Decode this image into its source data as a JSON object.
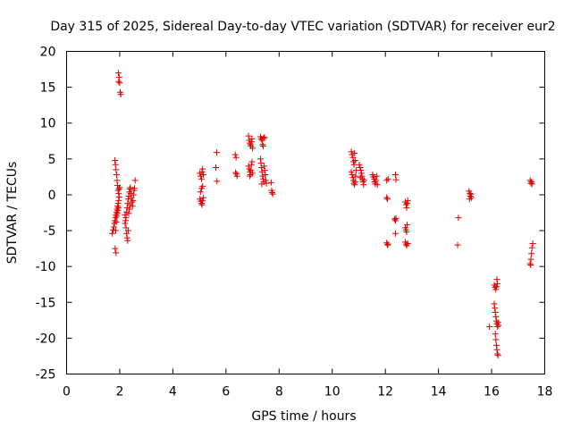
{
  "chart_data": {
    "type": "scatter",
    "title": "Day 315 of 2025, Sidereal Day-to-day VTEC variation (SDTVAR) for receiver eur2",
    "xlabel": "GPS time / hours",
    "ylabel": "SDTVAR / TECUs",
    "xlim": [
      0,
      18
    ],
    "ylim": [
      -25,
      20
    ],
    "x_ticks": [
      "0",
      "2",
      "4",
      "6",
      "8",
      "10",
      "12",
      "14",
      "16",
      "18"
    ],
    "y_ticks": [
      "-25",
      "-20",
      "-15",
      "-10",
      "-5",
      "0",
      "5",
      "10",
      "15",
      "20"
    ],
    "grid": false,
    "marker": "plus",
    "color": "#e00000",
    "series": [
      {
        "name": "SDTVAR",
        "points": [
          [
            1.72,
            -5.4
          ],
          [
            1.75,
            -4.9
          ],
          [
            1.78,
            -4.5
          ],
          [
            1.8,
            -4.0
          ],
          [
            1.82,
            -3.6
          ],
          [
            1.84,
            -3.2
          ],
          [
            1.86,
            -2.8
          ],
          [
            1.88,
            -2.4
          ],
          [
            1.9,
            -2.0
          ],
          [
            1.92,
            -1.6
          ],
          [
            1.94,
            -1.2
          ],
          [
            1.96,
            -0.8
          ],
          [
            1.85,
            -5.0
          ],
          [
            1.87,
            -3.8
          ],
          [
            1.89,
            -3.0
          ],
          [
            1.91,
            -2.6
          ],
          [
            1.93,
            -2.2
          ],
          [
            1.95,
            -1.8
          ],
          [
            1.82,
            4.8
          ],
          [
            1.84,
            4.2
          ],
          [
            1.86,
            3.5
          ],
          [
            1.88,
            2.8
          ],
          [
            1.9,
            2.0
          ],
          [
            1.92,
            1.3
          ],
          [
            1.94,
            0.6
          ],
          [
            1.96,
            0.2
          ],
          [
            1.98,
            -0.3
          ],
          [
            2.0,
            1.0
          ],
          [
            1.97,
            0.8
          ],
          [
            1.83,
            -7.5
          ],
          [
            1.86,
            -8.1
          ],
          [
            1.95,
            17.0
          ],
          [
            1.98,
            16.4
          ],
          [
            1.96,
            15.8
          ],
          [
            2.0,
            15.6
          ],
          [
            2.02,
            14.3
          ],
          [
            2.04,
            14.0
          ],
          [
            2.2,
            -2.8
          ],
          [
            2.24,
            -3.2
          ],
          [
            2.26,
            -2.4
          ],
          [
            2.28,
            -1.8
          ],
          [
            2.3,
            -1.2
          ],
          [
            2.32,
            -0.6
          ],
          [
            2.34,
            -0.2
          ],
          [
            2.36,
            0.4
          ],
          [
            2.38,
            0.8
          ],
          [
            2.4,
            1.0
          ],
          [
            2.42,
            0.2
          ],
          [
            2.44,
            -0.4
          ],
          [
            2.46,
            -1.0
          ],
          [
            2.48,
            -1.6
          ],
          [
            2.5,
            -0.8
          ],
          [
            2.52,
            0.0
          ],
          [
            2.54,
            0.6
          ],
          [
            2.56,
            0.9
          ],
          [
            2.58,
            2.0
          ],
          [
            2.2,
            -4.0
          ],
          [
            2.24,
            -4.6
          ],
          [
            2.26,
            -5.4
          ],
          [
            2.28,
            -6.0
          ],
          [
            2.3,
            -6.4
          ],
          [
            2.32,
            -5.0
          ],
          [
            2.22,
            -3.6
          ],
          [
            2.34,
            -2.6
          ],
          [
            2.36,
            -2.0
          ],
          [
            2.4,
            -1.4
          ],
          [
            5.02,
            3.0
          ],
          [
            5.05,
            2.6
          ],
          [
            5.08,
            2.2
          ],
          [
            5.1,
            3.2
          ],
          [
            5.12,
            3.6
          ],
          [
            5.15,
            2.8
          ],
          [
            5.02,
            -0.6
          ],
          [
            5.05,
            -0.9
          ],
          [
            5.08,
            -1.2
          ],
          [
            5.1,
            -1.4
          ],
          [
            5.12,
            -0.8
          ],
          [
            5.15,
            -0.4
          ],
          [
            5.04,
            0.4
          ],
          [
            5.08,
            0.9
          ],
          [
            5.12,
            1.2
          ],
          [
            5.65,
            5.9
          ],
          [
            5.62,
            3.8
          ],
          [
            5.66,
            1.9
          ],
          [
            6.35,
            5.6
          ],
          [
            6.38,
            5.2
          ],
          [
            6.36,
            3.1
          ],
          [
            6.4,
            2.9
          ],
          [
            6.42,
            2.6
          ],
          [
            6.85,
            8.2
          ],
          [
            6.88,
            7.6
          ],
          [
            6.9,
            7.2
          ],
          [
            6.92,
            7.0
          ],
          [
            6.94,
            6.8
          ],
          [
            6.96,
            7.4
          ],
          [
            6.98,
            7.8
          ],
          [
            7.0,
            6.5
          ],
          [
            6.85,
            4.0
          ],
          [
            6.88,
            3.6
          ],
          [
            6.9,
            3.2
          ],
          [
            6.92,
            2.8
          ],
          [
            6.94,
            3.4
          ],
          [
            6.96,
            4.2
          ],
          [
            6.98,
            4.6
          ],
          [
            7.0,
            3.0
          ],
          [
            6.9,
            2.6
          ],
          [
            7.3,
            8.1
          ],
          [
            7.33,
            7.8
          ],
          [
            7.36,
            7.6
          ],
          [
            7.38,
            7.0
          ],
          [
            7.4,
            6.8
          ],
          [
            7.42,
            7.9
          ],
          [
            7.45,
            8.0
          ],
          [
            7.3,
            5.0
          ],
          [
            7.32,
            4.4
          ],
          [
            7.34,
            3.8
          ],
          [
            7.36,
            3.2
          ],
          [
            7.38,
            2.6
          ],
          [
            7.4,
            2.2
          ],
          [
            7.42,
            1.8
          ],
          [
            7.44,
            4.0
          ],
          [
            7.46,
            3.4
          ],
          [
            7.48,
            2.8
          ],
          [
            7.5,
            2.0
          ],
          [
            7.52,
            1.6
          ],
          [
            7.35,
            1.5
          ],
          [
            7.7,
            1.7
          ],
          [
            7.72,
            0.6
          ],
          [
            7.74,
            0.3
          ],
          [
            7.76,
            0.1
          ],
          [
            10.72,
            6.0
          ],
          [
            10.75,
            5.6
          ],
          [
            10.78,
            5.2
          ],
          [
            10.8,
            4.6
          ],
          [
            10.82,
            4.2
          ],
          [
            10.84,
            5.8
          ],
          [
            10.86,
            4.8
          ],
          [
            10.72,
            3.2
          ],
          [
            10.75,
            2.8
          ],
          [
            10.78,
            2.4
          ],
          [
            10.8,
            2.0
          ],
          [
            10.82,
            1.6
          ],
          [
            10.84,
            1.4
          ],
          [
            10.86,
            1.8
          ],
          [
            10.88,
            2.6
          ],
          [
            10.9,
            3.4
          ],
          [
            11.02,
            4.2
          ],
          [
            11.05,
            3.8
          ],
          [
            11.08,
            3.4
          ],
          [
            11.1,
            3.0
          ],
          [
            11.12,
            2.6
          ],
          [
            11.14,
            2.2
          ],
          [
            11.16,
            1.8
          ],
          [
            11.18,
            1.4
          ],
          [
            11.2,
            2.0
          ],
          [
            11.06,
            2.4
          ],
          [
            11.52,
            2.8
          ],
          [
            11.55,
            2.5
          ],
          [
            11.58,
            2.2
          ],
          [
            11.6,
            1.8
          ],
          [
            11.62,
            1.5
          ],
          [
            11.65,
            2.0
          ],
          [
            11.68,
            2.6
          ],
          [
            11.7,
            1.4
          ],
          [
            12.05,
            2.0
          ],
          [
            12.1,
            2.2
          ],
          [
            12.38,
            2.8
          ],
          [
            12.4,
            2.1
          ],
          [
            12.05,
            -0.4
          ],
          [
            12.08,
            -0.6
          ],
          [
            12.05,
            -6.7
          ],
          [
            12.08,
            -7.0
          ],
          [
            12.1,
            -6.9
          ],
          [
            12.35,
            -3.4
          ],
          [
            12.38,
            -3.6
          ],
          [
            12.4,
            -3.3
          ],
          [
            12.38,
            -5.4
          ],
          [
            12.75,
            -1.0
          ],
          [
            12.78,
            -1.4
          ],
          [
            12.8,
            -1.8
          ],
          [
            12.82,
            -1.2
          ],
          [
            12.84,
            -0.8
          ],
          [
            12.75,
            -4.6
          ],
          [
            12.78,
            -4.9
          ],
          [
            12.8,
            -5.2
          ],
          [
            12.82,
            -4.2
          ],
          [
            12.75,
            -6.6
          ],
          [
            12.78,
            -6.9
          ],
          [
            12.8,
            -7.1
          ],
          [
            12.84,
            -6.8
          ],
          [
            14.75,
            -3.2
          ],
          [
            14.72,
            -7.0
          ],
          [
            15.15,
            0.5
          ],
          [
            15.18,
            0.2
          ],
          [
            15.2,
            -0.2
          ],
          [
            15.22,
            0.1
          ],
          [
            15.24,
            -0.4
          ],
          [
            15.17,
            -0.6
          ],
          [
            15.92,
            -18.4
          ],
          [
            16.1,
            -12.6
          ],
          [
            16.13,
            -12.9
          ],
          [
            16.16,
            -13.2
          ],
          [
            16.18,
            -12.8
          ],
          [
            16.2,
            -11.8
          ],
          [
            16.22,
            -12.4
          ],
          [
            16.1,
            -15.2
          ],
          [
            16.12,
            -15.8
          ],
          [
            16.14,
            -16.4
          ],
          [
            16.16,
            -17.0
          ],
          [
            16.18,
            -17.6
          ],
          [
            16.2,
            -18.0
          ],
          [
            16.22,
            -18.4
          ],
          [
            16.24,
            -17.8
          ],
          [
            16.26,
            -18.2
          ],
          [
            16.14,
            -19.4
          ],
          [
            16.16,
            -20.2
          ],
          [
            16.18,
            -21.0
          ],
          [
            16.2,
            -21.6
          ],
          [
            16.22,
            -22.2
          ],
          [
            16.24,
            -22.4
          ],
          [
            17.45,
            2.0
          ],
          [
            17.48,
            1.6
          ],
          [
            17.5,
            1.8
          ],
          [
            17.52,
            1.5
          ],
          [
            17.45,
            -9.6
          ],
          [
            17.48,
            -9.0
          ],
          [
            17.5,
            -8.2
          ],
          [
            17.52,
            -7.4
          ],
          [
            17.55,
            -6.8
          ],
          [
            17.47,
            -9.8
          ]
        ]
      }
    ]
  }
}
